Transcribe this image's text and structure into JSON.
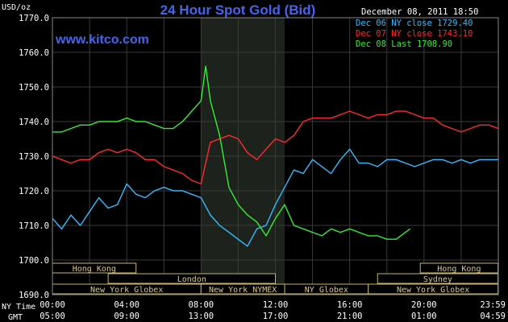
{
  "chart_data": {
    "type": "line",
    "title": "24 Hour Spot Gold (Bid)",
    "watermark": "www.kitco.com",
    "timestamp": "December 08, 2011 18:50",
    "ylabel": "USD/oz",
    "ylim": [
      1690,
      1770
    ],
    "yticks": [
      "1690.0",
      "1700.0",
      "1710.0",
      "1720.0",
      "1730.0",
      "1740.0",
      "1750.0",
      "1760.0",
      "1770.0"
    ],
    "xlim_hours": [
      0,
      24
    ],
    "row_labels": {
      "ny": "NY Time",
      "gmt": "GMT"
    },
    "ny_time_ticks": [
      "00:00",
      "04:00",
      "08:00",
      "12:00",
      "16:00",
      "20:00",
      "23:59"
    ],
    "gmt_ticks": [
      "05:00",
      "09:00",
      "13:00",
      "17:00",
      "21:00",
      "01:00",
      "04:59"
    ],
    "ny_tick_hours": [
      0,
      4,
      8,
      12,
      16,
      20,
      23.983
    ],
    "shaded_period_hours": [
      8,
      12.5
    ],
    "grid": true,
    "legend": [
      {
        "label": "Dec 06 NY close 1729.40",
        "color": "#33bbff"
      },
      {
        "label": "Dec 07 NY close 1743.10",
        "color": "#ff2a2a"
      },
      {
        "label": "Dec 08 Last 1708.90",
        "color": "#33ee33"
      }
    ],
    "sessions": [
      {
        "label": "Hong Kong",
        "row": 0,
        "hours": [
          0,
          4.5
        ]
      },
      {
        "label": "Hong Kong",
        "row": 0,
        "hours": [
          19.8,
          23.98
        ]
      },
      {
        "label": "London",
        "row": 1,
        "hours": [
          3,
          12
        ]
      },
      {
        "label": "Sydney",
        "row": 1,
        "hours": [
          17.5,
          23.98
        ]
      },
      {
        "label": "New York Globex",
        "row": 2,
        "hours": [
          0,
          8
        ]
      },
      {
        "label": "New York NYMEX",
        "row": 2,
        "hours": [
          8,
          12.5
        ]
      },
      {
        "label": "NY Globex",
        "row": 2,
        "hours": [
          12.5,
          17
        ]
      },
      {
        "label": "New York Globex",
        "row": 2,
        "hours": [
          17,
          23.98
        ]
      }
    ],
    "series": [
      {
        "color": "#33bbff",
        "x": [
          0,
          0.5,
          1,
          1.5,
          2,
          2.5,
          3,
          3.5,
          4,
          4.5,
          5,
          5.5,
          6,
          6.5,
          7,
          7.5,
          8,
          8.5,
          9,
          9.5,
          10,
          10.5,
          11,
          11.5,
          12,
          12.5,
          13,
          13.5,
          14,
          14.5,
          15,
          15.5,
          16,
          16.5,
          17,
          17.5,
          18,
          18.5,
          19,
          19.5,
          20,
          20.5,
          21,
          21.5,
          22,
          22.5,
          23,
          23.5,
          24
        ],
        "y": [
          1712,
          1709,
          1713,
          1710,
          1714,
          1718,
          1715,
          1716,
          1722,
          1719,
          1718,
          1720,
          1721,
          1720,
          1720,
          1719,
          1718,
          1713,
          1710,
          1708,
          1706,
          1704,
          1709,
          1710,
          1716,
          1721,
          1726,
          1725,
          1729,
          1727,
          1725,
          1729,
          1732,
          1728,
          1728,
          1727,
          1729,
          1729,
          1728,
          1727,
          1728,
          1729,
          1729,
          1728,
          1729,
          1728,
          1729,
          1729,
          1729
        ]
      },
      {
        "color": "#ff2a2a",
        "x": [
          0,
          0.5,
          1,
          1.5,
          2,
          2.5,
          3,
          3.5,
          4,
          4.5,
          5,
          5.5,
          6,
          6.5,
          7,
          7.5,
          8,
          8.5,
          9,
          9.5,
          10,
          10.5,
          11,
          11.5,
          12,
          12.5,
          13,
          13.5,
          14,
          14.5,
          15,
          15.5,
          16,
          16.5,
          17,
          17.5,
          18,
          18.5,
          19,
          19.5,
          20,
          20.5,
          21,
          21.5,
          22,
          22.5,
          23,
          23.5,
          24
        ],
        "y": [
          1730,
          1729,
          1728,
          1729,
          1729,
          1731,
          1732,
          1731,
          1732,
          1731,
          1729,
          1729,
          1727,
          1726,
          1725,
          1723,
          1722,
          1734,
          1735,
          1736,
          1735,
          1731,
          1729,
          1732,
          1735,
          1734,
          1736,
          1740,
          1741,
          1741,
          1741,
          1742,
          1743,
          1742,
          1741,
          1742,
          1742,
          1743,
          1743,
          1742,
          1741,
          1741,
          1739,
          1738,
          1737,
          1738,
          1739,
          1739,
          1738
        ]
      },
      {
        "color": "#33ee33",
        "x": [
          0,
          0.5,
          1,
          1.5,
          2,
          2.5,
          3,
          3.5,
          4,
          4.5,
          5,
          5.5,
          6,
          6.5,
          7,
          7.5,
          8,
          8.25,
          8.5,
          9,
          9.5,
          10,
          10.5,
          11,
          11.5,
          12,
          12.5,
          13,
          13.5,
          14,
          14.5,
          15,
          15.5,
          16,
          16.5,
          17,
          17.5,
          18,
          18.5,
          19,
          19.25
        ],
        "y": [
          1737,
          1737,
          1738,
          1739,
          1739,
          1740,
          1740,
          1740,
          1741,
          1740,
          1740,
          1739,
          1738,
          1738,
          1740,
          1743,
          1746,
          1756,
          1746,
          1736,
          1721,
          1716,
          1713,
          1711,
          1707,
          1712,
          1716,
          1710,
          1709,
          1708,
          1707,
          1709,
          1708,
          1709,
          1708,
          1707,
          1707,
          1706,
          1706,
          1708,
          1709
        ]
      }
    ]
  }
}
